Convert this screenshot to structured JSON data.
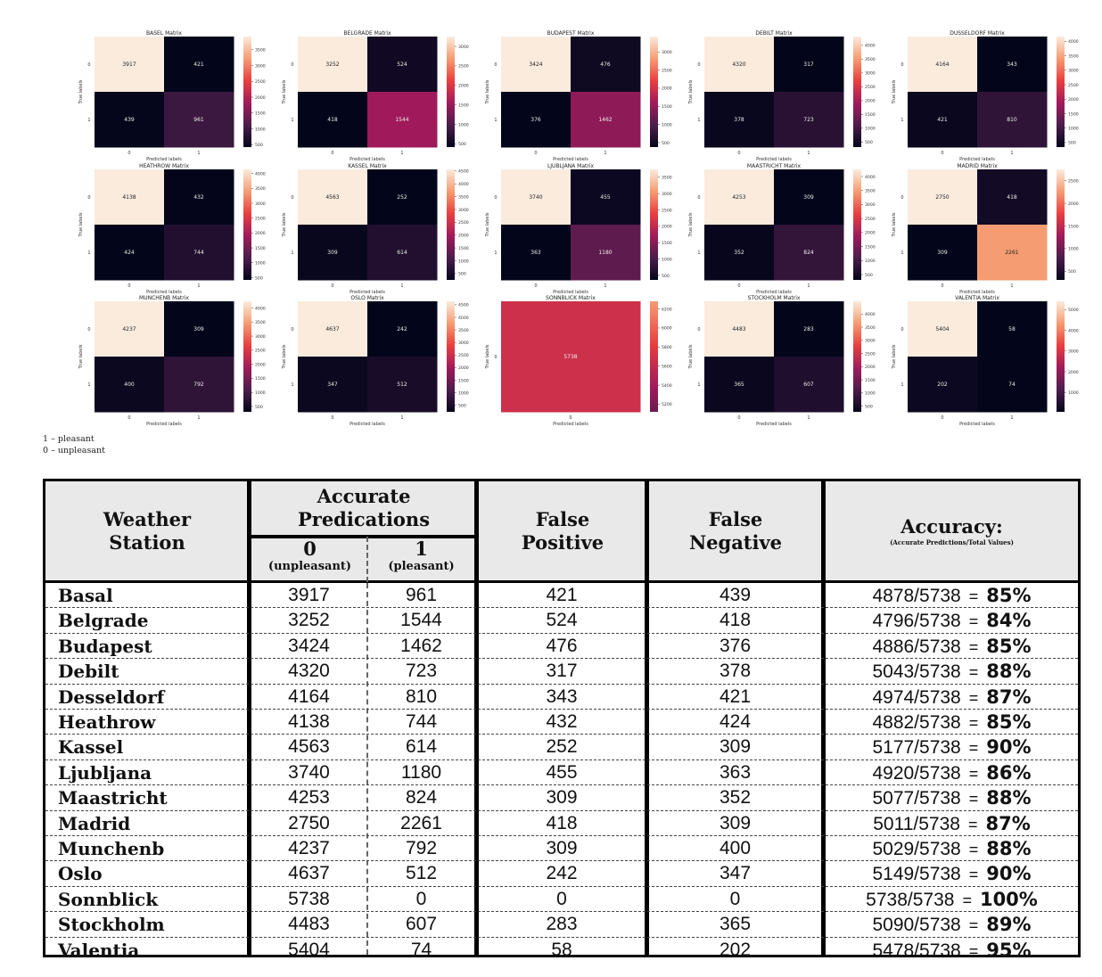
{
  "matrices": [
    {
      "title": "BASEL Matrix",
      "values": [
        [
          3917,
          421
        ],
        [
          439,
          961
        ]
      ],
      "ticks": [
        "3500",
        "3000",
        "2500",
        "2000",
        "1500",
        "1000",
        "500"
      ]
    },
    {
      "title": "BELGRADE Matrix",
      "values": [
        [
          3252,
          524
        ],
        [
          418,
          1544
        ]
      ],
      "ticks": [
        "3000",
        "2500",
        "2000",
        "1500",
        "1000",
        "500"
      ]
    },
    {
      "title": "BUDAPEST Matrix",
      "values": [
        [
          3424,
          476
        ],
        [
          376,
          1462
        ]
      ],
      "ticks": [
        "3000",
        "2500",
        "2000",
        "1500",
        "1000",
        "500"
      ]
    },
    {
      "title": "DEBILT Matrix",
      "values": [
        [
          4320,
          317
        ],
        [
          378,
          723
        ]
      ],
      "ticks": [
        "4000",
        "3500",
        "3000",
        "2500",
        "2000",
        "1500",
        "1000",
        "500"
      ]
    },
    {
      "title": "DUSSELDORF Matrix",
      "values": [
        [
          4164,
          343
        ],
        [
          421,
          810
        ]
      ],
      "ticks": [
        "4000",
        "3500",
        "3000",
        "2500",
        "2000",
        "1500",
        "1000",
        "500"
      ]
    },
    {
      "title": "HEATHROW Matrix",
      "values": [
        [
          4138,
          432
        ],
        [
          424,
          744
        ]
      ],
      "ticks": [
        "4000",
        "3500",
        "3000",
        "2500",
        "2000",
        "1500",
        "1000",
        "500"
      ]
    },
    {
      "title": "KASSEL Matrix",
      "values": [
        [
          4563,
          252
        ],
        [
          309,
          614
        ]
      ],
      "ticks": [
        "4500",
        "4000",
        "3500",
        "3000",
        "2500",
        "2000",
        "1500",
        "1000",
        "500"
      ]
    },
    {
      "title": "LJUBLJANA Matrix",
      "values": [
        [
          3740,
          455
        ],
        [
          363,
          1180
        ]
      ],
      "ticks": [
        "3500",
        "3000",
        "2500",
        "2000",
        "1500",
        "1000",
        "500"
      ]
    },
    {
      "title": "MAASTRICHT Matrix",
      "values": [
        [
          4253,
          309
        ],
        [
          352,
          824
        ]
      ],
      "ticks": [
        "4000",
        "3500",
        "3000",
        "2500",
        "2000",
        "1500",
        "1000",
        "500"
      ]
    },
    {
      "title": "MADRID Matrix",
      "values": [
        [
          2750,
          418
        ],
        [
          309,
          2261
        ]
      ],
      "ticks": [
        "2500",
        "2000",
        "1500",
        "1000",
        "500"
      ]
    },
    {
      "title": "MUNCHENB Matrix",
      "values": [
        [
          4237,
          309
        ],
        [
          400,
          792
        ]
      ],
      "ticks": [
        "4000",
        "3500",
        "3000",
        "2500",
        "2000",
        "1500",
        "1000",
        "500"
      ]
    },
    {
      "title": "OSLO Matrix",
      "values": [
        [
          4637,
          242
        ],
        [
          347,
          512
        ]
      ],
      "ticks": [
        "4500",
        "4000",
        "3500",
        "3000",
        "2500",
        "2000",
        "1500",
        "1000",
        "500"
      ]
    },
    {
      "title": "SONNBLICK Matrix",
      "values": [
        [
          5738
        ]
      ],
      "ticks": [
        "6200",
        "6000",
        "5800",
        "5600",
        "5400",
        "5200"
      ]
    },
    {
      "title": "STOCKHOLM Matrix",
      "values": [
        [
          4483,
          283
        ],
        [
          365,
          607
        ]
      ],
      "ticks": [
        "4000",
        "3500",
        "3000",
        "2500",
        "2000",
        "1500",
        "1000",
        "500"
      ]
    },
    {
      "title": "VALENTIA Matrix",
      "values": [
        [
          5404,
          58
        ],
        [
          202,
          74
        ]
      ],
      "ticks": [
        "5000",
        "4000",
        "3000",
        "2000",
        "1000"
      ]
    }
  ],
  "axis_labels": {
    "x": "Predicted labels",
    "y": "True labels"
  },
  "legend_note": [
    "1 – pleasant",
    "0 – unpleasant"
  ],
  "table": {
    "headers": {
      "station": [
        "Weather",
        "Station"
      ],
      "accurate": [
        "Accurate",
        "Predications"
      ],
      "zero": [
        "0",
        "(unpleasant)"
      ],
      "one": [
        "1",
        "(pleasant)"
      ],
      "fp": [
        "False",
        "Positive"
      ],
      "fn": [
        "False",
        "Negative"
      ],
      "accuracy": "Accuracy:",
      "accuracy_sub": "(Accurate Predictions/Total Values)"
    },
    "rows": [
      {
        "station": "Basal",
        "zero": "3917",
        "one": "961",
        "fp": "421",
        "fn": "439",
        "frac": "4878/5738",
        "eq": "=",
        "pct": "85%"
      },
      {
        "station": "Belgrade",
        "zero": "3252",
        "one": "1544",
        "fp": "524",
        "fn": "418",
        "frac": "4796/5738",
        "eq": "=",
        "pct": "84%"
      },
      {
        "station": "Budapest",
        "zero": "3424",
        "one": "1462",
        "fp": "476",
        "fn": "376",
        "frac": "4886/5738",
        "eq": "=",
        "pct": "85%"
      },
      {
        "station": "Debilt",
        "zero": "4320",
        "one": "723",
        "fp": "317",
        "fn": "378",
        "frac": "5043/5738",
        "eq": "=",
        "pct": "88%"
      },
      {
        "station": "Desseldorf",
        "zero": "4164",
        "one": "810",
        "fp": "343",
        "fn": "421",
        "frac": "4974/5738",
        "eq": "=",
        "pct": "87%"
      },
      {
        "station": "Heathrow",
        "zero": "4138",
        "one": "744",
        "fp": "432",
        "fn": "424",
        "frac": "4882/5738",
        "eq": "=",
        "pct": "85%"
      },
      {
        "station": "Kassel",
        "zero": "4563",
        "one": "614",
        "fp": "252",
        "fn": "309",
        "frac": "5177/5738",
        "eq": "=",
        "pct": "90%"
      },
      {
        "station": "Ljubljana",
        "zero": "3740",
        "one": "1180",
        "fp": "455",
        "fn": "363",
        "frac": "4920/5738",
        "eq": "=",
        "pct": "86%"
      },
      {
        "station": "Maastricht",
        "zero": "4253",
        "one": "824",
        "fp": "309",
        "fn": "352",
        "frac": "5077/5738",
        "eq": "=",
        "pct": "88%"
      },
      {
        "station": "Madrid",
        "zero": "2750",
        "one": "2261",
        "fp": "418",
        "fn": "309",
        "frac": "5011/5738",
        "eq": "=",
        "pct": "87%"
      },
      {
        "station": "Munchenb",
        "zero": "4237",
        "one": "792",
        "fp": "309",
        "fn": "400",
        "frac": "5029/5738",
        "eq": "=",
        "pct": "88%"
      },
      {
        "station": "Oslo",
        "zero": "4637",
        "one": "512",
        "fp": "242",
        "fn": "347",
        "frac": "5149/5738",
        "eq": "=",
        "pct": "90%"
      },
      {
        "station": "Sonnblick",
        "zero": "5738",
        "one": "0",
        "fp": "0",
        "fn": "0",
        "frac": "5738/5738",
        "eq": "=",
        "pct": "100%"
      },
      {
        "station": "Stockholm",
        "zero": "4483",
        "one": "607",
        "fp": "283",
        "fn": "365",
        "frac": "5090/5738",
        "eq": "=",
        "pct": "89%"
      },
      {
        "station": "Valentia",
        "zero": "5404",
        "one": "74",
        "fp": "58",
        "fn": "202",
        "frac": "5478/5738",
        "eq": "=",
        "pct": "95%"
      }
    ]
  },
  "chart_data": {
    "type": "heatmap",
    "title": "",
    "xlabel": "Predicted labels",
    "ylabel": "True labels",
    "categories": [
      "0",
      "1"
    ],
    "series": [
      {
        "name": "BASEL Matrix",
        "values": [
          [
            3917,
            421
          ],
          [
            439,
            961
          ]
        ]
      },
      {
        "name": "BELGRADE Matrix",
        "values": [
          [
            3252,
            524
          ],
          [
            418,
            1544
          ]
        ]
      },
      {
        "name": "BUDAPEST Matrix",
        "values": [
          [
            3424,
            476
          ],
          [
            376,
            1462
          ]
        ]
      },
      {
        "name": "DEBILT Matrix",
        "values": [
          [
            4320,
            317
          ],
          [
            378,
            723
          ]
        ]
      },
      {
        "name": "DUSSELDORF Matrix",
        "values": [
          [
            4164,
            343
          ],
          [
            421,
            810
          ]
        ]
      },
      {
        "name": "HEATHROW Matrix",
        "values": [
          [
            4138,
            432
          ],
          [
            424,
            744
          ]
        ]
      },
      {
        "name": "KASSEL Matrix",
        "values": [
          [
            4563,
            252
          ],
          [
            309,
            614
          ]
        ]
      },
      {
        "name": "LJUBLJANA Matrix",
        "values": [
          [
            3740,
            455
          ],
          [
            363,
            1180
          ]
        ]
      },
      {
        "name": "MAASTRICHT Matrix",
        "values": [
          [
            4253,
            309
          ],
          [
            352,
            824
          ]
        ]
      },
      {
        "name": "MADRID Matrix",
        "values": [
          [
            2750,
            418
          ],
          [
            309,
            2261
          ]
        ]
      },
      {
        "name": "MUNCHENB Matrix",
        "values": [
          [
            4237,
            309
          ],
          [
            400,
            792
          ]
        ]
      },
      {
        "name": "OSLO Matrix",
        "values": [
          [
            4637,
            242
          ],
          [
            347,
            512
          ]
        ]
      },
      {
        "name": "SONNBLICK Matrix",
        "values": [
          [
            5738
          ]
        ]
      },
      {
        "name": "STOCKHOLM Matrix",
        "values": [
          [
            4483,
            283
          ],
          [
            365,
            607
          ]
        ]
      },
      {
        "name": "VALENTIA Matrix",
        "values": [
          [
            5404,
            58
          ],
          [
            202,
            74
          ]
        ]
      }
    ],
    "colormap": [
      "#03051a",
      "#4c1d4b",
      "#a11a5b",
      "#e83f3f",
      "#f69c73",
      "#faebdd"
    ]
  }
}
